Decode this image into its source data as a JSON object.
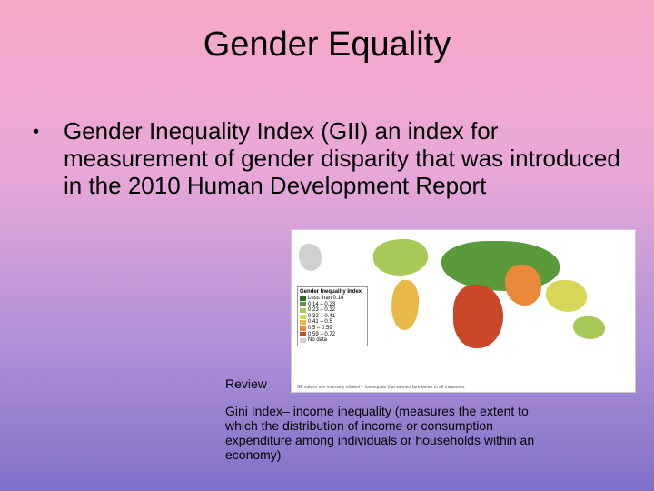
{
  "slide": {
    "title": "Gender Equality",
    "bullet_marker": "•",
    "bullet_text": "Gender Inequality Index (GII) an index for measurement of gender disparity that was introduced in the 2010 Human Development Report",
    "review_label": "Review",
    "gini_text": "Gini Index– income inequality (measures the extent to which the distribution of income or consumption expenditure among individuals or households within an economy)"
  },
  "map": {
    "legend_title": "Gender Inequality Index",
    "legend": [
      {
        "label": "Less than 0.14",
        "color": "#2a6a2a"
      },
      {
        "label": "0.14 – 0.23",
        "color": "#5a9a3a"
      },
      {
        "label": "0.23 – 0.32",
        "color": "#a8c858"
      },
      {
        "label": "0.32 – 0.41",
        "color": "#d8d858"
      },
      {
        "label": "0.41 – 0.5",
        "color": "#e8b848"
      },
      {
        "label": "0.5 – 0.59",
        "color": "#e88838"
      },
      {
        "label": "0.59 – 0.72",
        "color": "#c84828"
      },
      {
        "label": "No data",
        "color": "#d0d0d0"
      }
    ],
    "footnote": "GII values are inversely related – low equals\nthat women fare better in all measures"
  },
  "colors": {
    "bg_top": "#f8a8c8",
    "bg_bottom": "#8070c8",
    "text": "#000000",
    "map_bg": "#ffffff"
  }
}
